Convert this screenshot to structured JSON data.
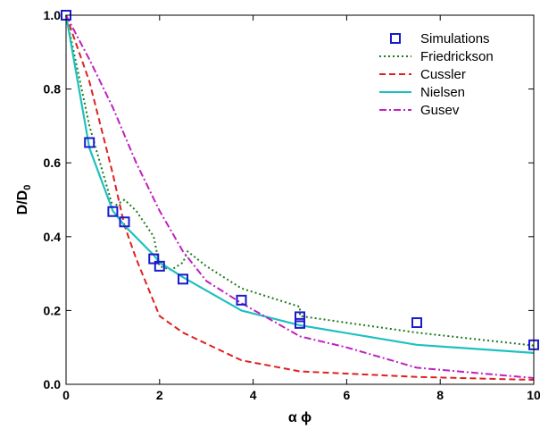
{
  "chart_data": {
    "type": "line",
    "xlabel": "α ϕ",
    "ylabel_main": "D/D",
    "ylabel_sub": "0",
    "xlim": [
      0,
      10
    ],
    "ylim": [
      0,
      1.0
    ],
    "xticks": [
      0,
      2,
      4,
      6,
      8,
      10
    ],
    "yticks": [
      0.0,
      0.2,
      0.4,
      0.6,
      0.8,
      1.0
    ],
    "ytick_labels": [
      "0.0",
      "0.2",
      "0.4",
      "0.6",
      "0.8",
      "1.0"
    ],
    "legend_position": "top-right",
    "series": [
      {
        "name": "Simulations",
        "style": "marker",
        "color": "#1a1acc",
        "x": [
          0,
          0.5,
          1.0,
          1.25,
          1.875,
          2.0,
          2.5,
          3.75,
          5.0,
          5.0,
          7.5,
          10.0
        ],
        "y": [
          1.0,
          0.655,
          0.468,
          0.44,
          0.34,
          0.32,
          0.285,
          0.228,
          0.183,
          0.165,
          0.167,
          0.107
        ]
      },
      {
        "name": "Friedrickson",
        "style": "dotted",
        "color": "#1e7a1e",
        "x": [
          0,
          0.5,
          1.0,
          1.25,
          1.5,
          1.875,
          2.0,
          2.25,
          2.5,
          2.6,
          3.0,
          3.75,
          5.0,
          5.0,
          7.5,
          10.0
        ],
        "y": [
          1.0,
          0.7,
          0.48,
          0.5,
          0.47,
          0.4,
          0.32,
          0.31,
          0.33,
          0.36,
          0.32,
          0.26,
          0.21,
          0.185,
          0.14,
          0.105
        ]
      },
      {
        "name": "Cussler",
        "style": "dashed",
        "color": "#e02020",
        "x": [
          0,
          0.5,
          1.0,
          1.25,
          1.5,
          2.0,
          2.5,
          3.0,
          3.75,
          5.0,
          7.5,
          10.0
        ],
        "y": [
          1.0,
          0.82,
          0.57,
          0.43,
          0.34,
          0.185,
          0.14,
          0.11,
          0.065,
          0.035,
          0.02,
          0.012
        ]
      },
      {
        "name": "Nielsen",
        "style": "solid",
        "color": "#20c0c0",
        "x": [
          0,
          0.5,
          1.0,
          1.25,
          1.875,
          2.0,
          2.5,
          3.75,
          5.0,
          7.5,
          10.0
        ],
        "y": [
          1.0,
          0.64,
          0.47,
          0.43,
          0.35,
          0.33,
          0.29,
          0.2,
          0.16,
          0.107,
          0.085
        ]
      },
      {
        "name": "Gusev",
        "style": "dashdot",
        "color": "#c020c0",
        "x": [
          0,
          0.5,
          1.0,
          1.5,
          2.0,
          2.5,
          3.0,
          3.75,
          5.0,
          6.0,
          7.5,
          10.0
        ],
        "y": [
          1.0,
          0.88,
          0.75,
          0.6,
          0.47,
          0.36,
          0.28,
          0.22,
          0.13,
          0.1,
          0.045,
          0.017
        ]
      }
    ]
  }
}
